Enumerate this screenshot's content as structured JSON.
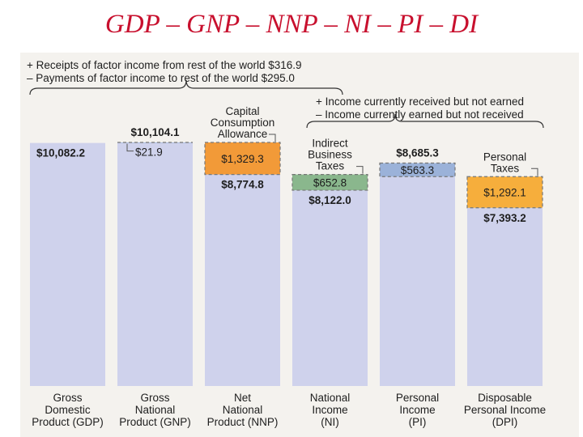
{
  "title": "GDP – GNP – NNP – NI – PI – DI",
  "colors": {
    "bar_base": "#cfd2ec",
    "orange": "#f29a38",
    "green": "#8ab78d",
    "blue_adjust": "#9bb2d9",
    "gold": "#f6ae3c",
    "title_red": "#c8102e",
    "dash": "#777777"
  },
  "annotations": {
    "top_receipts": "+ Receipts of factor income from rest of the world $316.9",
    "top_payments": "– Payments of factor income to rest of the world $295.0",
    "pi_received": "+ Income currently received but not earned",
    "pi_earned": "– Income currently earned but not received"
  },
  "chart_data": {
    "type": "bar",
    "title": "GDP – GNP – NNP – NI – PI – DI",
    "categories": [
      [
        "Gross",
        "Domestic",
        "Product (GDP)"
      ],
      [
        "Gross",
        "National",
        "Product (GNP)"
      ],
      [
        "Net",
        "National",
        "Product (NNP)"
      ],
      [
        "National",
        "Income",
        "(NI)"
      ],
      [
        "Personal",
        "Income",
        "(PI)"
      ],
      [
        "Disposable",
        "Personal Income",
        "(DPI)"
      ]
    ],
    "values": [
      10082.2,
      10104.1,
      8774.8,
      8122.0,
      8685.3,
      7393.2
    ],
    "value_labels": [
      "$10,082.2",
      "$10,104.1",
      "$8,774.8",
      "$8,122.0",
      "$8,685.3",
      "$7,393.2"
    ],
    "adjustments": [
      null,
      {
        "label": "$21.9",
        "value": 21.9,
        "color": "blue_adjust"
      },
      {
        "label": "$1,329.3",
        "value": 1329.3,
        "color": "orange",
        "name": [
          "Capital",
          "Consumption",
          "Allowance"
        ]
      },
      {
        "label": "$652.8",
        "value": 652.8,
        "color": "green",
        "name": [
          "Indirect",
          "Business",
          "Taxes"
        ]
      },
      {
        "label": "$563.3",
        "value": 563.3,
        "color": "blue_adjust",
        "name": []
      },
      {
        "label": "$1,292.1",
        "value": 1292.1,
        "color": "gold",
        "name": [
          "Personal",
          "Taxes"
        ]
      }
    ],
    "ylim": [
      0,
      10104.1
    ]
  }
}
